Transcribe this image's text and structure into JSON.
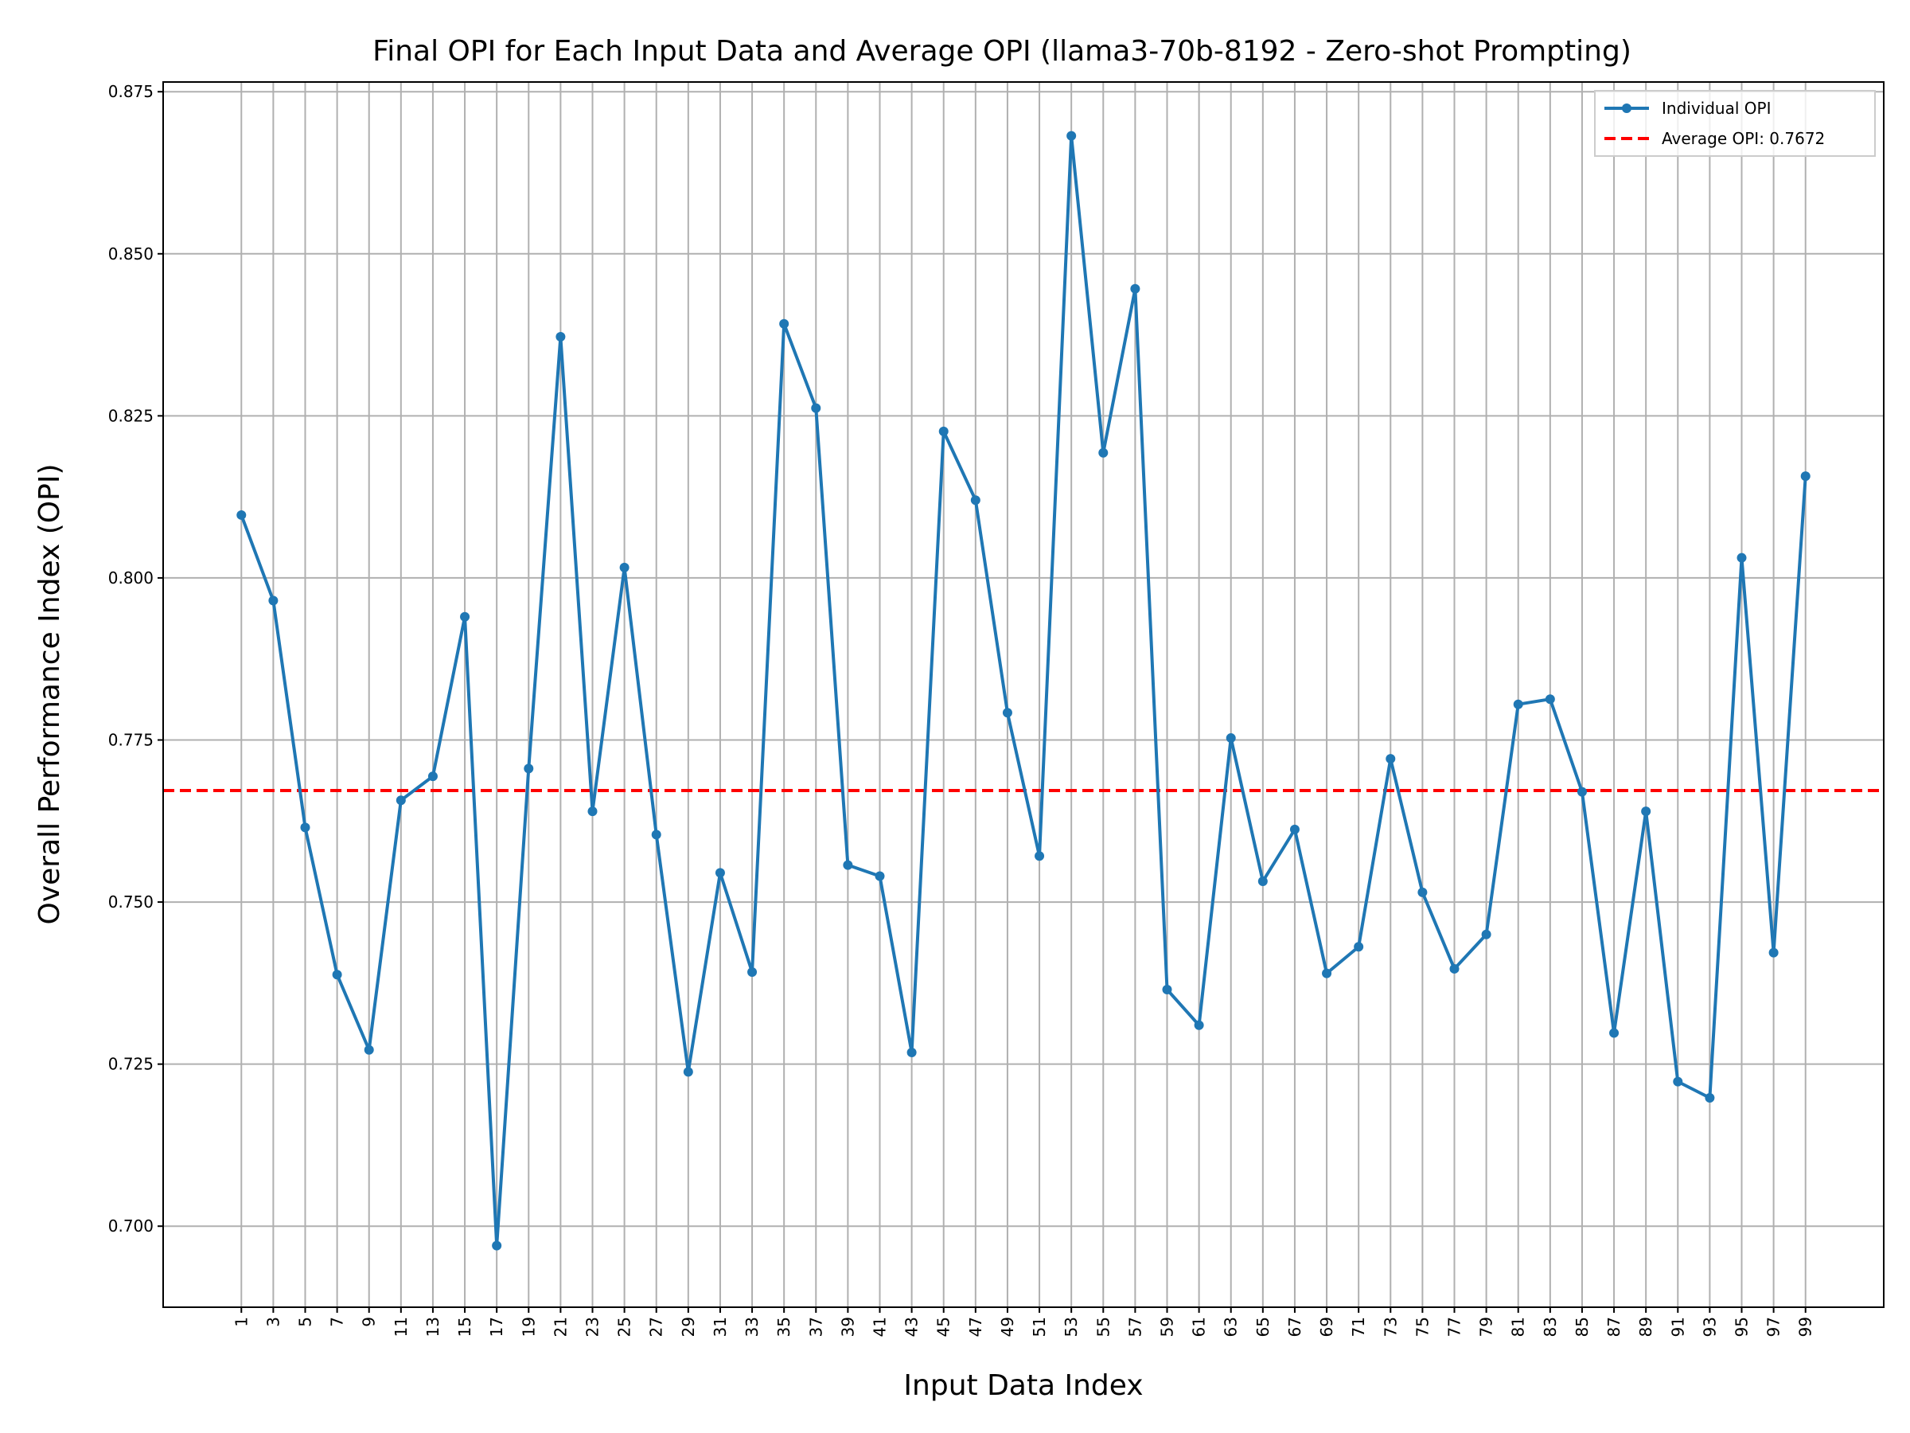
{
  "chart_data": {
    "type": "line",
    "title": "Final OPI for Each Input Data and Average OPI (llama3-70b-8192 - Zero-shot Prompting)",
    "xlabel": "Input Data Index",
    "ylabel": "Overall Performance Index (OPI)",
    "x": [
      1,
      3,
      5,
      7,
      9,
      11,
      13,
      15,
      17,
      19,
      21,
      23,
      25,
      27,
      29,
      31,
      33,
      35,
      37,
      39,
      41,
      43,
      45,
      47,
      49,
      51,
      53,
      55,
      57,
      59,
      61,
      63,
      65,
      67,
      69,
      71,
      73,
      75,
      77,
      79,
      81,
      83,
      85,
      87,
      89,
      91,
      93,
      95,
      97,
      99
    ],
    "x_ticks": [
      "1",
      "3",
      "5",
      "7",
      "9",
      "11",
      "13",
      "15",
      "17",
      "19",
      "21",
      "23",
      "25",
      "27",
      "29",
      "31",
      "33",
      "35",
      "37",
      "39",
      "41",
      "43",
      "45",
      "47",
      "49",
      "51",
      "53",
      "55",
      "57",
      "59",
      "61",
      "63",
      "65",
      "67",
      "69",
      "71",
      "73",
      "75",
      "77",
      "79",
      "81",
      "83",
      "85",
      "87",
      "89",
      "91",
      "93",
      "95",
      "97",
      "99"
    ],
    "xlim": [
      -3.9,
      103.9
    ],
    "ylim": [
      0.6875,
      0.8765
    ],
    "y_ticks": [
      0.7,
      0.725,
      0.75,
      0.775,
      0.8,
      0.825,
      0.85,
      0.875
    ],
    "y_tick_labels": [
      "0.700",
      "0.725",
      "0.750",
      "0.775",
      "0.800",
      "0.825",
      "0.850",
      "0.875"
    ],
    "grid": true,
    "legend_position": "top-right",
    "series": [
      {
        "name": "Individual OPI",
        "color": "#1f77b4",
        "marker": "circle",
        "values": [
          0.8097,
          0.7965,
          0.7615,
          0.7388,
          0.7272,
          0.7657,
          0.7694,
          0.794,
          0.697,
          0.7706,
          0.8372,
          0.764,
          0.8016,
          0.7604,
          0.7238,
          0.7545,
          0.7392,
          0.8392,
          0.8262,
          0.7557,
          0.754,
          0.7268,
          0.8226,
          0.812,
          0.7792,
          0.7571,
          0.8682,
          0.8193,
          0.8446,
          0.7365,
          0.731,
          0.7753,
          0.7532,
          0.7612,
          0.739,
          0.7431,
          0.7721,
          0.7515,
          0.7397,
          0.745,
          0.7805,
          0.7813,
          0.767,
          0.7298,
          0.764,
          0.7223,
          0.7198,
          0.8031,
          0.7422,
          0.8157
        ]
      },
      {
        "name": "Average OPI: 0.7672",
        "color": "#ff0000",
        "style": "dashed",
        "value": 0.7672
      }
    ]
  }
}
